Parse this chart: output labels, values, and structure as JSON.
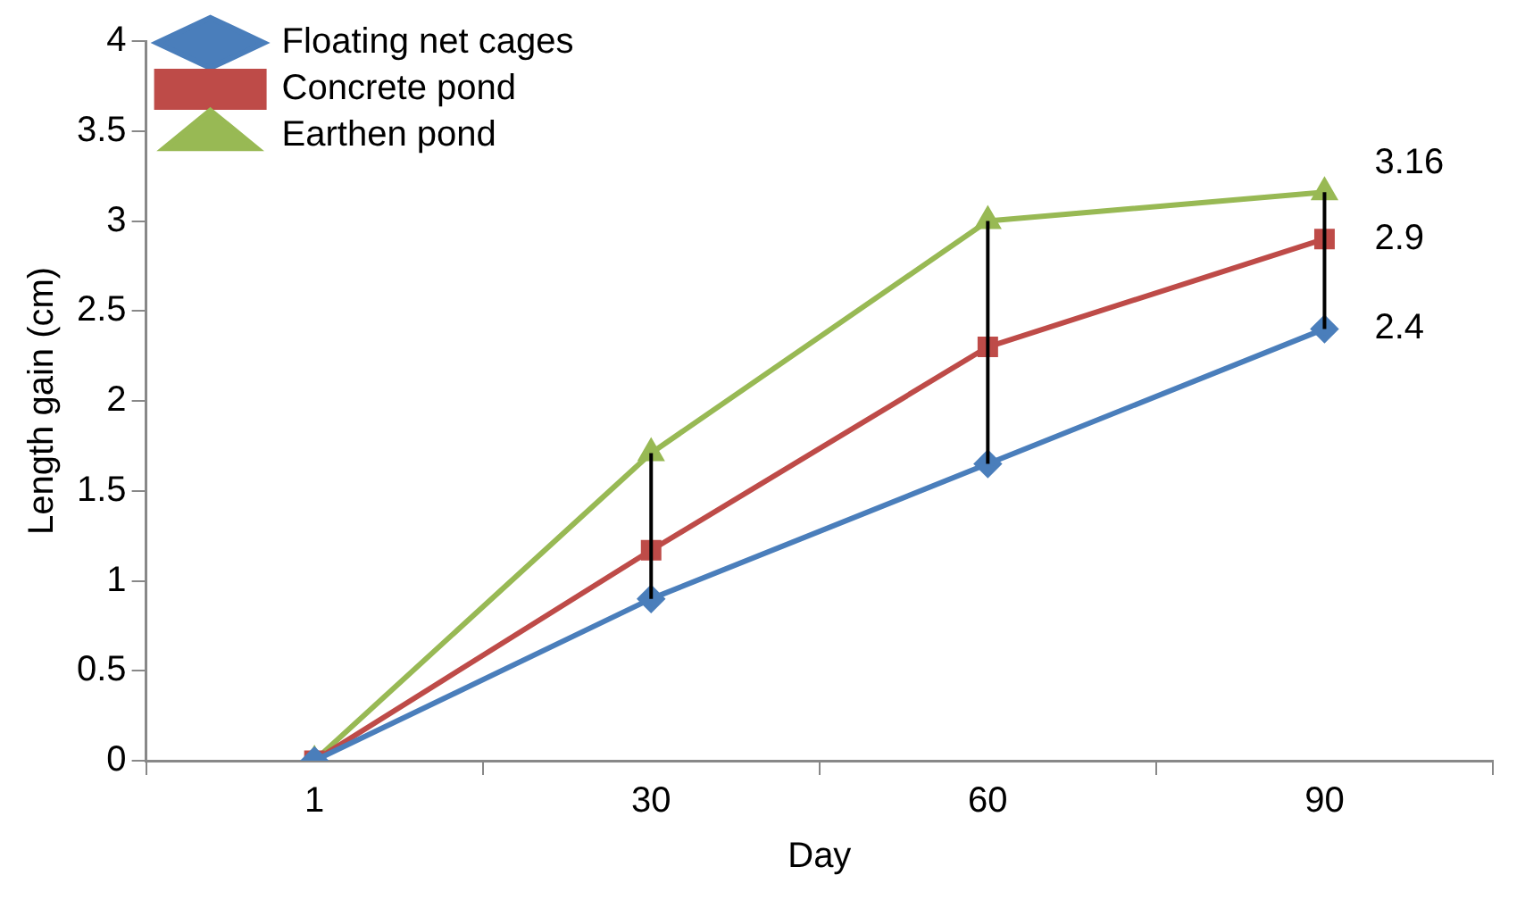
{
  "chart_data": {
    "type": "line",
    "xlabel": "Day",
    "ylabel": "Length gain (cm)",
    "categories": [
      "1",
      "30",
      "60",
      "90"
    ],
    "series": [
      {
        "name": "Floating net cages",
        "color": "#4a7ebb",
        "marker": "diamond",
        "values": [
          0,
          0.9,
          1.65,
          2.4
        ],
        "value_labels": [
          null,
          null,
          null,
          "2.4"
        ]
      },
      {
        "name": "Concrete pond",
        "color": "#be4b48",
        "marker": "square",
        "values": [
          0,
          1.17,
          2.3,
          2.9
        ],
        "value_labels": [
          null,
          null,
          null,
          "2.9"
        ]
      },
      {
        "name": "Earthen pond",
        "color": "#98b954",
        "marker": "triangle",
        "values": [
          0,
          1.71,
          3.0,
          3.16
        ],
        "value_labels": [
          null,
          null,
          null,
          "3.16"
        ],
        "errors": [
          null,
          [
            0.9,
            1.71
          ],
          [
            1.65,
            3.0
          ],
          [
            2.4,
            3.16
          ]
        ]
      }
    ],
    "ylim": [
      0,
      4
    ],
    "yticks": [
      0,
      0.5,
      1,
      1.5,
      2,
      2.5,
      3,
      3.5,
      4
    ],
    "grid": false,
    "legend": "top left"
  }
}
